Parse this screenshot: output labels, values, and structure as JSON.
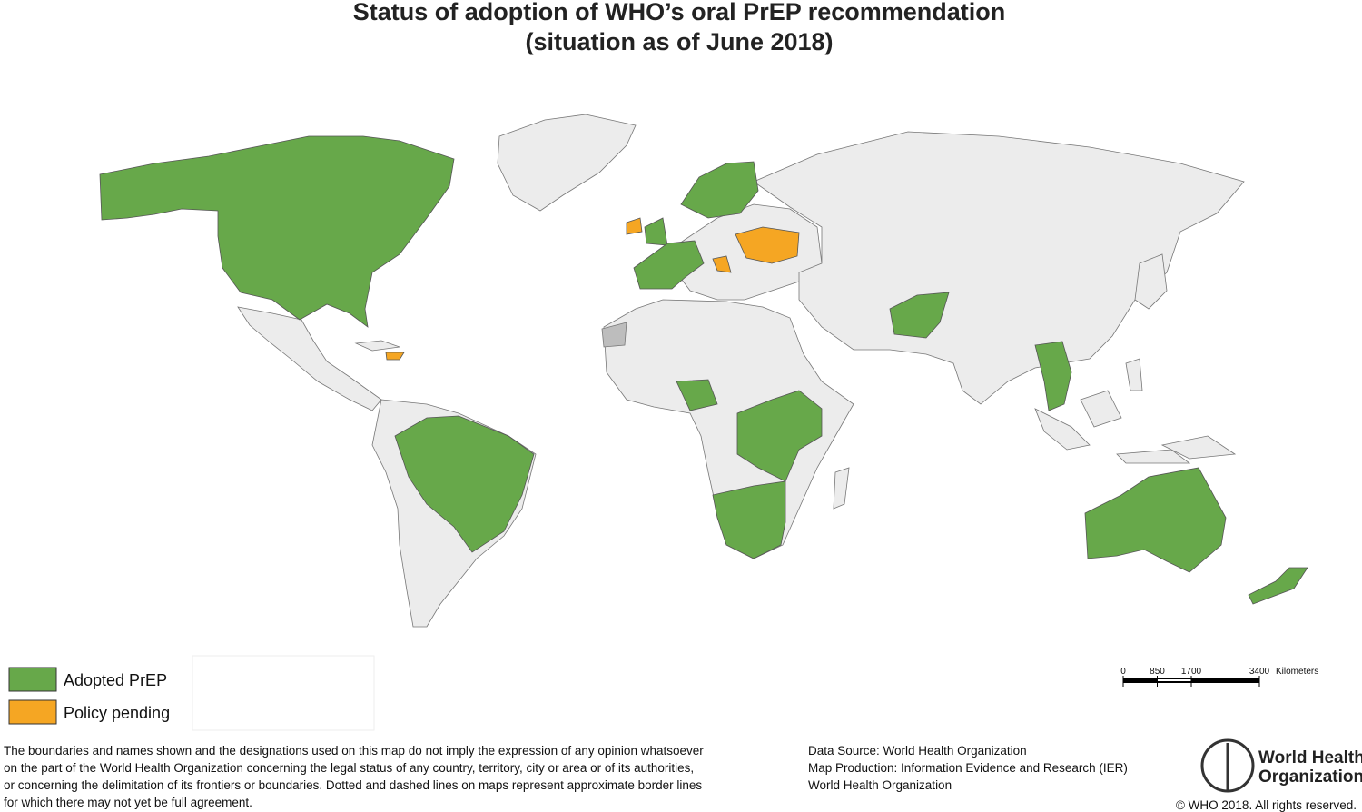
{
  "title": [
    "Status of adoption of WHO’s oral PrEP recommendation",
    "(situation as of June 2018)"
  ],
  "legend": [
    {
      "label": "Adopted PrEP",
      "color": "#67a84a"
    },
    {
      "label": "Policy pending",
      "color": "#f5a623"
    }
  ],
  "scale_bar": {
    "ticks": [
      0,
      850,
      1700,
      3400
    ],
    "unit": "Kilometers"
  },
  "disclaimer": [
    "The boundaries and names shown and the designations used on this map do not imply the expression of any opinion whatsoever",
    "on the part of the World Health Organization concerning the legal status of any country, territory, city or area or of its authorities,",
    "or concerning the delimitation of its frontiers or boundaries. Dotted and dashed lines on maps represent approximate border lines",
    "for which there may not yet be full agreement."
  ],
  "credits": [
    "Data Source: World Health Organization",
    "Map Production: Information Evidence and Research (IER)",
    "World Health Organization"
  ],
  "logo": [
    "World Health",
    "Organization"
  ],
  "copyright": "© WHO 2018. All rights reserved."
}
